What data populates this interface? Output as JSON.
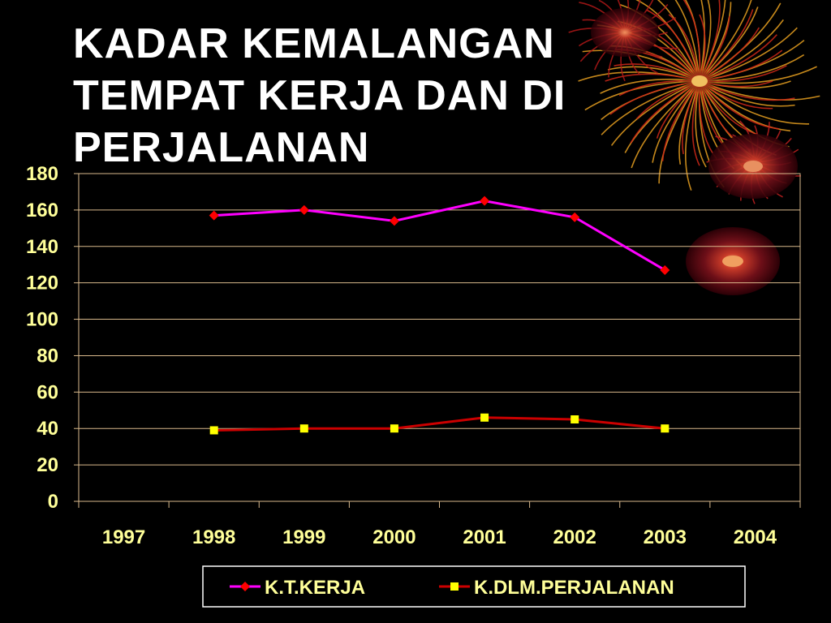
{
  "slide": {
    "title": "KADAR KEMALANGAN TEMPAT KERJA DAN DI PERJALANAN"
  },
  "colors": {
    "background": "#000000",
    "title": "#ffffff",
    "axis_text": "#ffff99",
    "gridline": "#d9b98c",
    "series_1": "#ff00ff",
    "series_1_marker": "#ff0000",
    "series_2": "#cc0000",
    "series_2_marker": "#ffff00"
  },
  "decoration_icons": [
    "firework-burst-icon",
    "glowing-orb-icon"
  ],
  "chart_data": {
    "type": "line",
    "title": "KADAR KEMALANGAN TEMPAT KERJA DAN DI PERJALANAN",
    "categories": [
      "1997",
      "1998",
      "1999",
      "2000",
      "2001",
      "2002",
      "2003",
      "2004"
    ],
    "series": [
      {
        "name": "K.T.KERJA",
        "marker": "diamond",
        "values": [
          null,
          157,
          160,
          154,
          165,
          156,
          127,
          null
        ]
      },
      {
        "name": "K.DLM.PERJALANAN",
        "marker": "square",
        "values": [
          null,
          39,
          40,
          40,
          46,
          45,
          40,
          null
        ]
      }
    ],
    "y_ticks": [
      "0",
      "20",
      "40",
      "60",
      "80",
      "100",
      "120",
      "140",
      "160",
      "180"
    ],
    "ylim": [
      0,
      180
    ],
    "grid": true,
    "legend_position": "bottom"
  }
}
